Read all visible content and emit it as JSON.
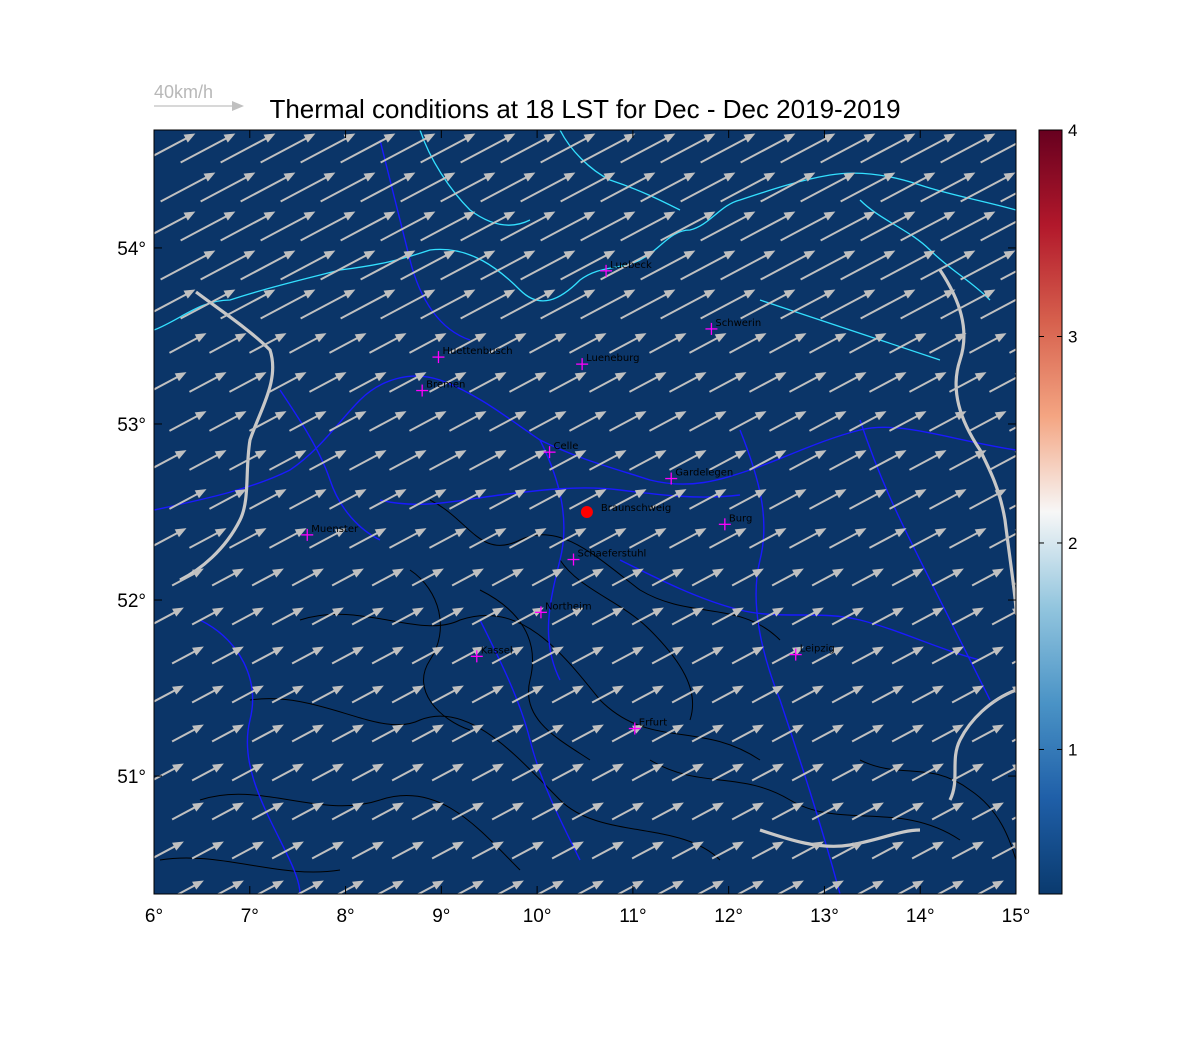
{
  "title": "Thermal conditions at 18 LST for Dec - Dec  2019-2019",
  "scale_label": "40km/h",
  "map": {
    "lon_range": [
      6,
      15
    ],
    "lat_range": [
      50.33,
      54.67
    ],
    "background_color": "#0b3568",
    "coast_color": "#33e0ff",
    "border_color": "#1a1aff",
    "river_color": "#c8c8c8",
    "contour_color": "#000000",
    "wind_arrow_color": "#c0c0c0",
    "city_marker_color": "#ff00ff",
    "highlight_color": "#ff0000",
    "wind_direction_deg_from_east_toward_north": 28
  },
  "x_ticks": [
    {
      "value": 6,
      "label": "6°"
    },
    {
      "value": 7,
      "label": "7°"
    },
    {
      "value": 8,
      "label": "8°"
    },
    {
      "value": 9,
      "label": "9°"
    },
    {
      "value": 10,
      "label": "10°"
    },
    {
      "value": 11,
      "label": "11°"
    },
    {
      "value": 12,
      "label": "12°"
    },
    {
      "value": 13,
      "label": "13°"
    },
    {
      "value": 14,
      "label": "14°"
    },
    {
      "value": 15,
      "label": "15°"
    }
  ],
  "y_ticks": [
    {
      "value": 51,
      "label": "51°"
    },
    {
      "value": 52,
      "label": "52°"
    },
    {
      "value": 53,
      "label": "53°"
    },
    {
      "value": 54,
      "label": "54°"
    }
  ],
  "cities": [
    {
      "name": "Luebeck",
      "lon": 10.72,
      "lat": 53.87
    },
    {
      "name": "Schwerin",
      "lon": 11.82,
      "lat": 53.54
    },
    {
      "name": "Huettenbusch",
      "lon": 8.97,
      "lat": 53.38
    },
    {
      "name": "Lueneburg",
      "lon": 10.47,
      "lat": 53.34
    },
    {
      "name": "Bremen",
      "lon": 8.8,
      "lat": 53.19
    },
    {
      "name": "Celle",
      "lon": 10.13,
      "lat": 52.84
    },
    {
      "name": "Gardelegen",
      "lon": 11.4,
      "lat": 52.69
    },
    {
      "name": "Burg",
      "lon": 11.96,
      "lat": 52.43
    },
    {
      "name": "Muenster",
      "lon": 7.6,
      "lat": 52.37
    },
    {
      "name": "Schaeferstuhl",
      "lon": 10.38,
      "lat": 52.23
    },
    {
      "name": "Northeim",
      "lon": 10.04,
      "lat": 51.93
    },
    {
      "name": "Kassel",
      "lon": 9.37,
      "lat": 51.68
    },
    {
      "name": "Leipzig",
      "lon": 12.7,
      "lat": 51.69
    },
    {
      "name": "Erfurt",
      "lon": 11.02,
      "lat": 51.27
    }
  ],
  "highlight": {
    "name": "Braunschweig",
    "lon": 10.52,
    "lat": 52.5
  },
  "colorbar": {
    "min": 0.3,
    "max": 4,
    "ticks": [
      {
        "value": 1,
        "label": "1"
      },
      {
        "value": 2,
        "label": "2"
      },
      {
        "value": 3,
        "label": "3"
      },
      {
        "value": 4,
        "label": "4"
      }
    ],
    "colors": [
      "#0a3a6e",
      "#1f5fa8",
      "#4a93c6",
      "#92c5de",
      "#f7f7f7",
      "#f4a582",
      "#d6604d",
      "#b2182b",
      "#67001f"
    ]
  }
}
